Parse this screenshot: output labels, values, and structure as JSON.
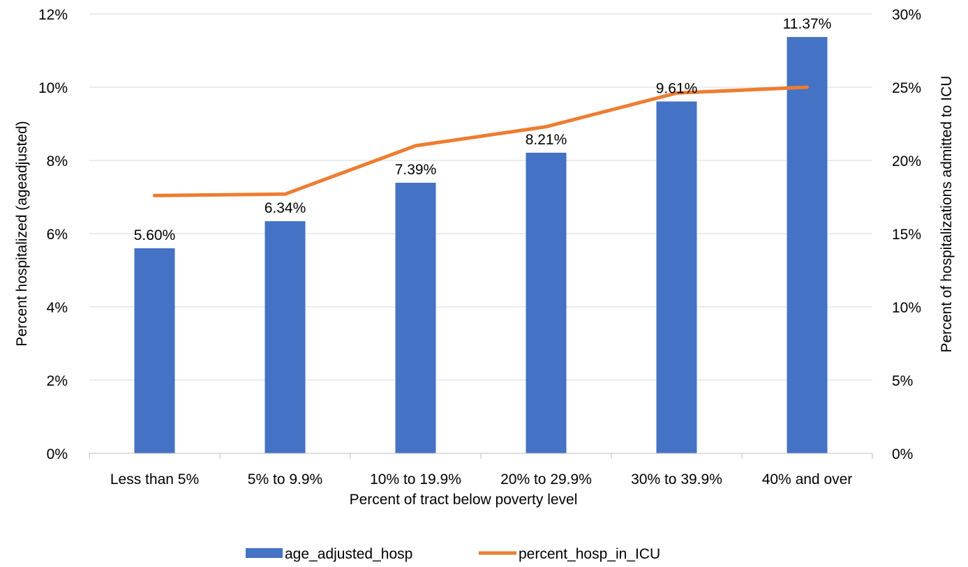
{
  "chart_data": {
    "type": "bar",
    "categories": [
      "Less than 5%",
      "5% to 9.9%",
      "10% to 19.9%",
      "20% to 29.9%",
      "30% to 39.9%",
      "40% and over"
    ],
    "series": [
      {
        "name": "age_adjusted_hosp",
        "type": "bar",
        "axis": "left",
        "color": "#4472c4",
        "values": [
          5.6,
          6.34,
          7.39,
          8.21,
          9.61,
          11.37
        ],
        "labels": [
          "5.60%",
          "6.34%",
          "7.39%",
          "8.21%",
          "9.61%",
          "11.37%"
        ]
      },
      {
        "name": "percent_hosp_in_ICU",
        "type": "line",
        "axis": "right",
        "color": "#ed7d31",
        "values": [
          17.6,
          17.7,
          21.0,
          22.3,
          24.6,
          25.0
        ]
      }
    ],
    "xlabel": "Percent of tract below poverty level",
    "ylabel": "Percent hospitalized (ageadjusted)",
    "y2label": "Percent of hospitalizations admitted to ICU",
    "ylim": [
      0,
      12
    ],
    "y2lim": [
      0,
      30
    ],
    "yticks": [
      "0%",
      "2%",
      "4%",
      "6%",
      "8%",
      "10%",
      "12%"
    ],
    "y2ticks": [
      "0%",
      "5%",
      "10%",
      "15%",
      "20%",
      "25%",
      "30%"
    ],
    "grid": true,
    "legend_position": "bottom"
  }
}
